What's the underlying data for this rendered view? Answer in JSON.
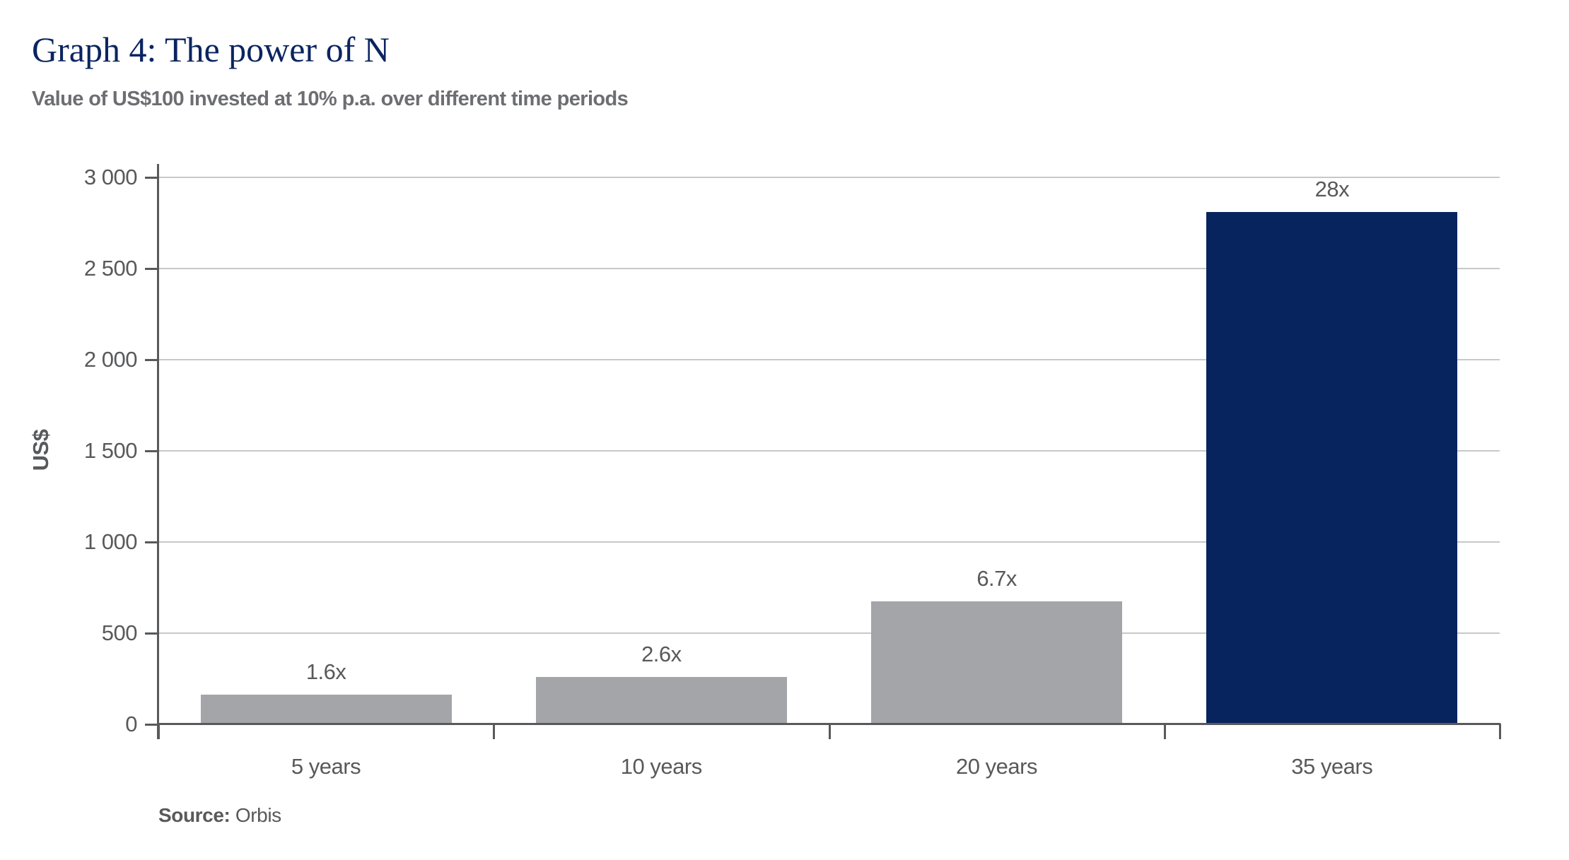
{
  "header": {
    "title": "Graph 4: The power of N",
    "subtitle": "Value of US$100 invested at 10% p.a. over different time periods"
  },
  "footer": {
    "source_label": "Source:",
    "source_value": "Orbis"
  },
  "colors": {
    "title": "#0b2461",
    "highlight_bar": "#08245e",
    "default_bar": "#a4a5a8",
    "text": "#58595b",
    "gridline": "#c8c8c8"
  },
  "chart_data": {
    "type": "bar",
    "title": "Graph 4: The power of N",
    "subtitle": "Value of US$100 invested at 10% p.a. over different time periods",
    "xlabel": "",
    "ylabel": "US$",
    "categories": [
      "5 years",
      "10 years",
      "20 years",
      "35 years"
    ],
    "values": [
      161,
      259,
      673,
      2810
    ],
    "data_labels": [
      "1.6x",
      "2.6x",
      "6.7x",
      "28x"
    ],
    "bar_colors": [
      "#a4a5a8",
      "#a4a5a8",
      "#a4a5a8",
      "#08245e"
    ],
    "ylim": [
      0,
      3000
    ],
    "yticks": [
      0,
      500,
      1000,
      1500,
      2000,
      2500,
      3000
    ],
    "ytick_labels": [
      "0",
      "500",
      "1 000",
      "1 500",
      "2 000",
      "2 500",
      "3 000"
    ],
    "grid": true,
    "legend": null,
    "source": "Source: Orbis"
  }
}
